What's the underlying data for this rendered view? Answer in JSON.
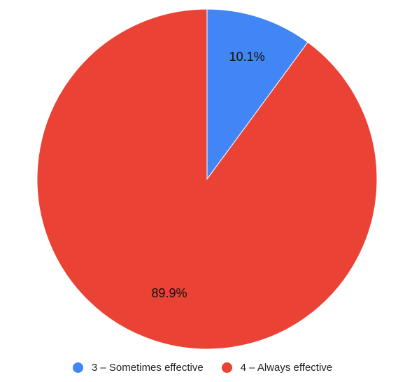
{
  "chart_data": {
    "type": "pie",
    "title": "",
    "slices": [
      {
        "label": "3 – Sometimes effective",
        "value": 10.1,
        "value_label": "10.1%",
        "color": "#4285f4"
      },
      {
        "label": "4 – Always effective",
        "value": 89.9,
        "value_label": "89.9%",
        "color": "#ea4335"
      }
    ],
    "start_angle": "12 o'clock",
    "direction": "clockwise",
    "legend_position": "bottom",
    "legend": [
      {
        "label": "3 – Sometimes effective",
        "color": "#4285f4"
      },
      {
        "label": "4 – Always effective",
        "color": "#ea4335"
      }
    ]
  }
}
